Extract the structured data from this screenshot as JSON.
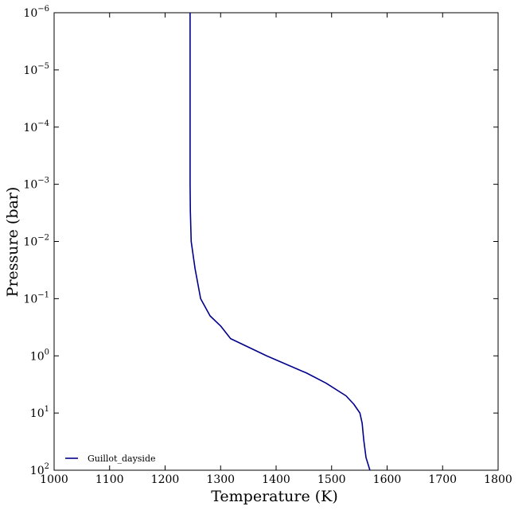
{
  "chart_data": {
    "type": "line",
    "xlabel": "Temperature (K)",
    "ylabel": "Pressure (bar)",
    "x": [
      1245,
      1245,
      1245,
      1245,
      1245.5,
      1247,
      1254,
      1264,
      1281,
      1300,
      1318,
      1383,
      1455,
      1490,
      1526,
      1540,
      1551,
      1555,
      1558,
      1562,
      1569
    ],
    "series": [
      {
        "name": "Guillot_dayside",
        "color": "#00008b",
        "values": [
          1e-06,
          1e-05,
          0.0001,
          0.001,
          0.003,
          0.01,
          0.03,
          0.1,
          0.2,
          0.3,
          0.5,
          1,
          2,
          3,
          5,
          7,
          10,
          15,
          30,
          60,
          100
        ]
      }
    ],
    "xlim": [
      1000,
      1800
    ],
    "xticks": [
      1000,
      1100,
      1200,
      1300,
      1400,
      1500,
      1600,
      1700,
      1800
    ],
    "ylim": [
      1e-06,
      100
    ],
    "y_log": true,
    "y_inverted": true,
    "yticks": [
      {
        "value": 1e-06,
        "label": "10^-6"
      },
      {
        "value": 1e-05,
        "label": "10^-5"
      },
      {
        "value": 0.0001,
        "label": "10^-4"
      },
      {
        "value": 0.001,
        "label": "10^-3"
      },
      {
        "value": 0.01,
        "label": "10^-2"
      },
      {
        "value": 0.1,
        "label": "10^-1"
      },
      {
        "value": 1,
        "label": "10^0"
      },
      {
        "value": 10,
        "label": "10^1"
      },
      {
        "value": 100,
        "label": "10^2"
      }
    ],
    "legend": "lower left",
    "grid": false
  }
}
